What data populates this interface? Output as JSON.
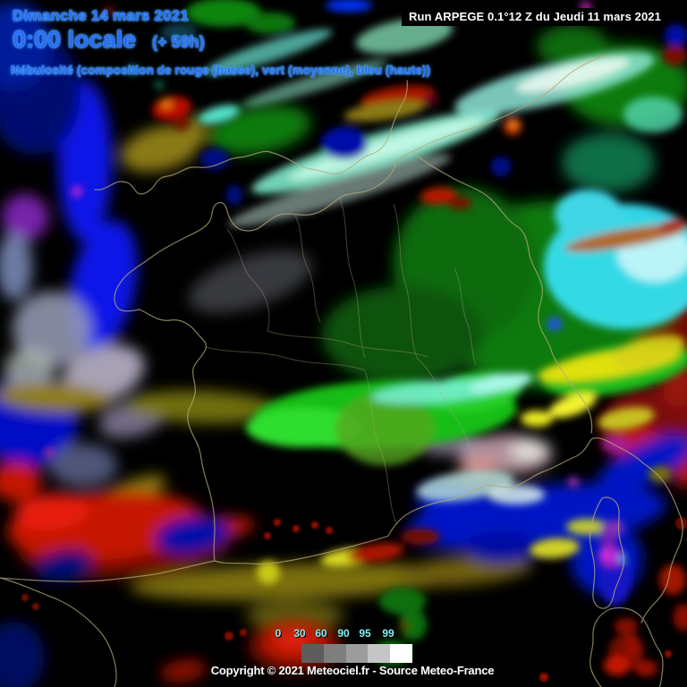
{
  "header": {
    "date": "Dimanche 14 mars 2021",
    "time": "0:00 locale",
    "offset": "(+ 59h)",
    "subtitle": "Nébulosité (composition de rouge (basse), vert (moyenne), bleu (haute))",
    "run": "Run ARPEGE 0.1°12 Z du Jeudi 11 mars 2021"
  },
  "scale": {
    "labels": [
      "0",
      "30",
      "60",
      "90",
      "95",
      "99"
    ],
    "box_colors": [
      "#5d5d5d",
      "#7e7e7e",
      "#9c9c9c",
      "#c5c5c5",
      "#ffffff"
    ]
  },
  "footer": {
    "copyright": "Copyright © 2021 Meteociel.fr - Source Meteo-France"
  },
  "map": {
    "background_color": "#000000",
    "border_color": "#b3a87a",
    "title_text_color": "#2a6cf7",
    "scale_label_color": "#7df2f2",
    "cloud_channels": {
      "rouge": "basse",
      "vert": "moyenne",
      "bleu": "haute"
    }
  }
}
